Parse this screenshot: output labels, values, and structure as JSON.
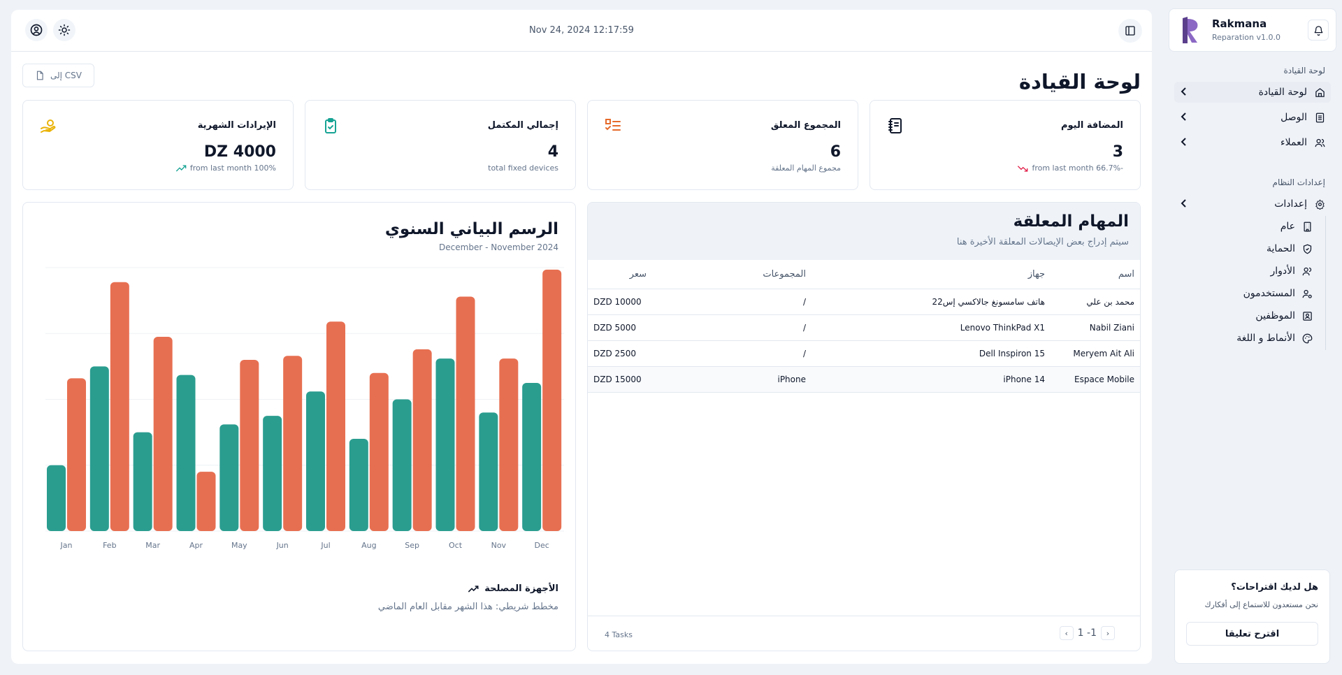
{
  "header": {
    "datetime": "Nov 24, 2024 12:17:59"
  },
  "page": {
    "title": "لوحة القيادة",
    "export_label": "إلى CSV"
  },
  "stats": [
    {
      "title": "المضافة اليوم",
      "value": "3",
      "sub": "from last month 66.7%-",
      "trend": "down",
      "icon": "notebook-icon",
      "color": "#0f172a"
    },
    {
      "title": "المجموع المعلق",
      "value": "6",
      "sub": "مجموع المهام المعلقة",
      "trend": "none",
      "icon": "list-checks-icon",
      "color": "#e56a2b"
    },
    {
      "title": "إجمالي المكتمل",
      "value": "4",
      "sub": "total fixed devices",
      "trend": "none",
      "icon": "clipboard-check-icon",
      "color": "#16a394"
    },
    {
      "title": "الإيرادات الشهرية",
      "value": "DZ 4000",
      "sub": "from last month 100%",
      "trend": "up",
      "icon": "hand-coins-icon",
      "color": "#eab308"
    }
  ],
  "tasks": {
    "title": "المهام المعلقة",
    "subtitle": "سيتم إدراج بعض الإيصالات المعلقة الأخيرة هنا",
    "columns": [
      "اسم",
      "جهاز",
      "المجموعات",
      "سعر"
    ],
    "rows": [
      [
        "محمد بن علي",
        "هاتف سامسونغ جالاكسي إس22",
        "/",
        "DZD 10000"
      ],
      [
        "Nabil Ziani",
        "Lenovo ThinkPad X1",
        "/",
        "DZD 5000"
      ],
      [
        "Meryem Ait Ali",
        "Dell Inspiron 15",
        "/",
        "DZD 2500"
      ],
      [
        "Espace Mobile",
        "iPhone 14",
        "iPhone",
        "DZD 15000"
      ]
    ],
    "count": "4 Tasks",
    "pagination": "1 -1"
  },
  "chart_panel": {
    "title": "الرسم البياني السنوي",
    "subtitle": "December - November 2024",
    "footer_title": "الأجهزة المصلحة",
    "footer_sub": "مخطط شريطي: هذا الشهر مقابل العام الماضي"
  },
  "chart_data": {
    "type": "bar",
    "categories": [
      "Jan",
      "Feb",
      "Mar",
      "Apr",
      "May",
      "Jun",
      "Jul",
      "Aug",
      "Sep",
      "Oct",
      "Nov",
      "Dec"
    ],
    "series": [
      {
        "values": [
          100,
          250,
          150,
          237,
          162,
          175,
          212,
          140,
          200,
          262,
          180,
          225
        ],
        "color": "#2a9d8f"
      },
      {
        "values": [
          232,
          378,
          295,
          90,
          260,
          266,
          318,
          240,
          276,
          356,
          262,
          397
        ],
        "color": "#e76f51"
      }
    ],
    "ylim": [
      0,
      400
    ],
    "grid": true
  },
  "sidebar": {
    "brand_name": "Rakmana",
    "brand_version": "Reparation v1.0.0",
    "section_main": "لوحة القيادة",
    "nav": [
      {
        "label": "لوحة القيادة",
        "icon": "home-icon"
      },
      {
        "label": "الوصل",
        "icon": "receipt-icon"
      },
      {
        "label": "العملاء",
        "icon": "users-icon"
      }
    ],
    "section_system": "إعدادات النظام",
    "settings_label": "إعدادات",
    "settings_items": [
      {
        "label": "عام",
        "icon": "building-icon"
      },
      {
        "label": "الحماية",
        "icon": "shield-icon"
      },
      {
        "label": "الأدوار",
        "icon": "user-roles-icon"
      },
      {
        "label": "المستخدمون",
        "icon": "user-cog-icon"
      },
      {
        "label": "الموظفين",
        "icon": "id-card-icon"
      },
      {
        "label": "الأنماط و اللغة",
        "icon": "palette-icon"
      }
    ],
    "feedback_title": "هل لديك اقتراحات؟",
    "feedback_sub": "نحن مستعدون للاستماع إلى أفكارك",
    "feedback_button": "اقترح تعليقا"
  }
}
